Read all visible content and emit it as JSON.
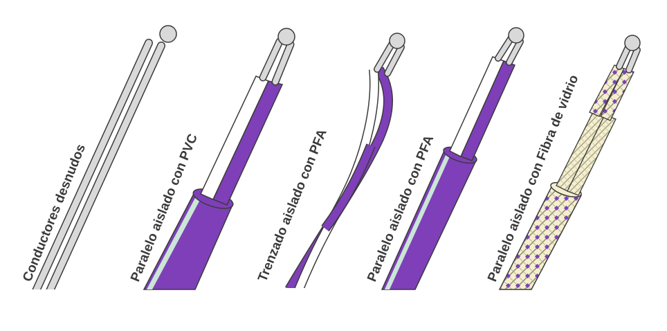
{
  "cables": [
    {
      "label": "Conductores desnudos"
    },
    {
      "label": "Paralelo aislado con PVC"
    },
    {
      "label": "Trenzado aislado con PFA"
    },
    {
      "label": "Paralelo aislado con PFA"
    },
    {
      "label": "Paralelo aislado con Fibra de vidrio"
    }
  ],
  "colors": {
    "purple": "#7f3fb8",
    "purple_dark": "#5a2a8c",
    "wire_grey": "#d9d9d9",
    "outline": "#3a3a3a",
    "white": "#ffffff",
    "glass_fiber": "#f3efcf"
  }
}
